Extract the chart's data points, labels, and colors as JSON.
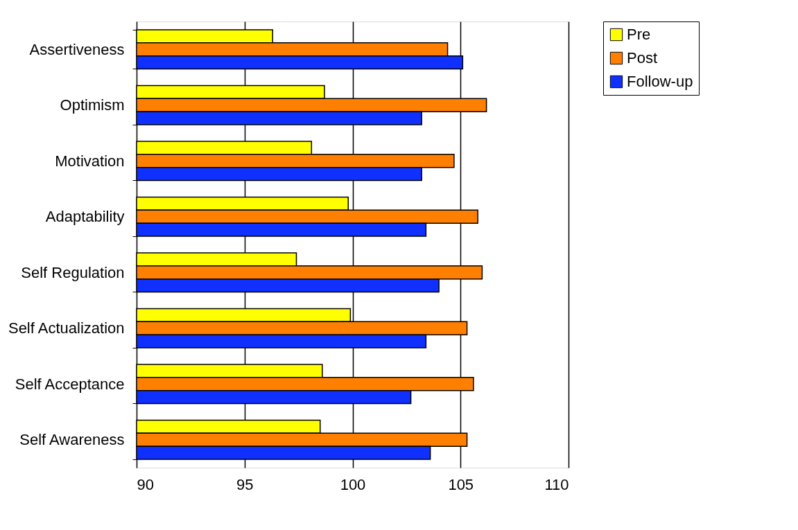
{
  "chart_data": {
    "type": "bar",
    "orientation": "horizontal",
    "categories": [
      "Assertiveness",
      "Optimism",
      "Motivation",
      "Adaptability",
      "Self Regulation",
      "Self Actualization",
      "Self Acceptance",
      "Self Awareness"
    ],
    "series": [
      {
        "name": "Pre",
        "color": "#ffff00",
        "values": [
          96.3,
          98.7,
          98.1,
          99.8,
          97.4,
          99.9,
          98.6,
          98.5
        ]
      },
      {
        "name": "Post",
        "color": "#ff8000",
        "values": [
          104.4,
          106.2,
          104.7,
          105.8,
          106.0,
          105.3,
          105.6,
          105.3
        ]
      },
      {
        "name": "Follow-up",
        "color": "#1030ff",
        "values": [
          105.1,
          103.2,
          103.2,
          103.4,
          104.0,
          103.4,
          102.7,
          103.6
        ]
      }
    ],
    "xlim": [
      90,
      110
    ],
    "xticks": [
      90,
      95,
      100,
      105,
      110
    ],
    "grid": "x",
    "legend": "right"
  }
}
